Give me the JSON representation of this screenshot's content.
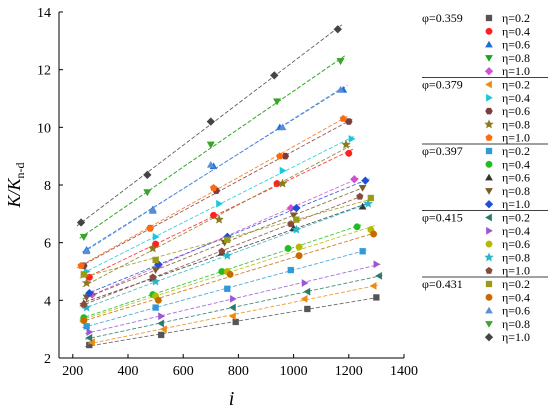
{
  "chart_data": {
    "type": "scatter",
    "xlabel": "i",
    "ylabel": "K/K",
    "ylabel_sub": "n-d",
    "xlim": [
      150,
      1400
    ],
    "ylim": [
      2,
      14
    ],
    "xticks": [
      200,
      400,
      600,
      800,
      1000,
      1200,
      1400
    ],
    "yticks": [
      2,
      4,
      6,
      8,
      10,
      12,
      14
    ],
    "grid": false,
    "legend_position": "right",
    "groups": [
      {
        "phi": "φ=0.359",
        "series": [
          {
            "name": "η=0.2",
            "marker": "square",
            "color": "#555555",
            "x": [
              260,
              520,
              790,
              1050,
              1300
            ],
            "y": [
              2.45,
              2.8,
              3.25,
              3.7,
              4.1
            ]
          },
          {
            "name": "η=0.4",
            "marker": "circle",
            "color": "#ff1f1f",
            "x": [
              260,
              500,
              710,
              940,
              1200
            ],
            "y": [
              4.8,
              5.95,
              6.95,
              8.05,
              9.1
            ]
          },
          {
            "name": "η=0.6",
            "marker": "triangle-up",
            "color": "#1e6fd6",
            "x": [
              250,
              490,
              710,
              950,
              1180
            ],
            "y": [
              5.75,
              7.15,
              8.65,
              10.0,
              11.3
            ]
          },
          {
            "name": "η=0.8",
            "marker": "triangle-down",
            "color": "#1aa31a",
            "x": [
              240,
              470,
              700,
              940,
              1170
            ],
            "y": [
              6.2,
              7.75,
              9.4,
              10.9,
              12.3
            ]
          },
          {
            "name": "η=1.0",
            "marker": "diamond",
            "color": "#d24fd2",
            "x": [
              270,
              510,
              760,
              990,
              1220
            ],
            "y": [
              4.2,
              5.2,
              6.2,
              7.2,
              8.2
            ]
          }
        ]
      },
      {
        "phi": "φ=0.379",
        "series": [
          {
            "name": "η=0.2",
            "marker": "triangle-left",
            "color": "#ee8a12",
            "x": [
              270,
              530,
              780,
              1040,
              1290
            ],
            "y": [
              2.55,
              3.0,
              3.45,
              4.05,
              4.5
            ]
          },
          {
            "name": "η=0.4",
            "marker": "triangle-right",
            "color": "#17c8d8",
            "x": [
              250,
              500,
              730,
              960,
              1210
            ],
            "y": [
              5.0,
              6.2,
              7.35,
              8.5,
              9.6
            ]
          },
          {
            "name": "η=0.6",
            "marker": "hexagon",
            "color": "#7a3c3c",
            "x": [
              240,
              480,
              720,
              970,
              1200
            ],
            "y": [
              5.2,
              6.5,
              7.8,
              9.0,
              10.2
            ]
          },
          {
            "name": "η=0.8",
            "marker": "star",
            "color": "#8a7a1e",
            "x": [
              250,
              490,
              730,
              960,
              1190
            ],
            "y": [
              4.6,
              5.8,
              6.8,
              8.05,
              9.4
            ]
          },
          {
            "name": "η=1.0",
            "marker": "pentagon",
            "color": "#ff6a0e",
            "x": [
              230,
              480,
              710,
              950,
              1180
            ],
            "y": [
              5.2,
              6.5,
              7.9,
              9.0,
              10.3
            ]
          }
        ]
      },
      {
        "phi": "φ=0.397",
        "series": [
          {
            "name": "η=0.2",
            "marker": "square",
            "color": "#2f9ad8",
            "x": [
              250,
              500,
              760,
              990,
              1250
            ],
            "y": [
              3.1,
              3.75,
              4.4,
              5.05,
              5.7
            ]
          },
          {
            "name": "η=0.4",
            "marker": "circle",
            "color": "#22bb22",
            "x": [
              240,
              490,
              740,
              980,
              1230
            ],
            "y": [
              3.4,
              4.2,
              5.0,
              5.8,
              6.55
            ]
          },
          {
            "name": "η=0.6",
            "marker": "triangle-up",
            "color": "#333333",
            "x": [
              240,
              490,
              740,
              1000,
              1250
            ],
            "y": [
              3.9,
              4.75,
              5.65,
              6.5,
              7.25
            ]
          },
          {
            "name": "η=0.8",
            "marker": "triangle-down",
            "color": "#7a5a2a",
            "x": [
              250,
              500,
              750,
              1000,
              1250
            ],
            "y": [
              4.1,
              5.05,
              6.0,
              6.95,
              7.9
            ]
          },
          {
            "name": "η=1.0",
            "marker": "diamond",
            "color": "#1d4fd6",
            "x": [
              260,
              510,
              760,
              1010,
              1260
            ],
            "y": [
              4.25,
              5.25,
              6.2,
              7.2,
              8.15
            ]
          }
        ]
      },
      {
        "phi": "φ=0.415",
        "series": [
          {
            "name": "η=0.2",
            "marker": "triangle-left",
            "color": "#2a7a6a",
            "x": [
              260,
              520,
              780,
              1050,
              1310
            ],
            "y": [
              2.7,
              3.2,
              3.75,
              4.3,
              4.85
            ]
          },
          {
            "name": "η=0.4",
            "marker": "triangle-right",
            "color": "#9a56d6",
            "x": [
              260,
              520,
              780,
              1040,
              1300
            ],
            "y": [
              2.9,
              3.45,
              4.05,
              4.6,
              5.25
            ]
          },
          {
            "name": "η=0.6",
            "marker": "circle",
            "color": "#b8b800",
            "x": [
              240,
              500,
              760,
              1020,
              1280
            ],
            "y": [
              3.3,
              4.15,
              5.0,
              5.85,
              6.45
            ]
          },
          {
            "name": "η=0.8",
            "marker": "star",
            "color": "#2bb5c8",
            "x": [
              250,
              500,
              760,
              1010,
              1270
            ],
            "y": [
              3.75,
              4.65,
              5.55,
              6.45,
              7.35
            ]
          },
          {
            "name": "η=1.0",
            "marker": "pentagon",
            "color": "#8a4a3a",
            "x": [
              240,
              490,
              740,
              990,
              1240
            ],
            "y": [
              3.85,
              4.8,
              5.7,
              6.65,
              7.6
            ]
          }
        ]
      },
      {
        "phi": "φ=0.431",
        "series": [
          {
            "name": "η=0.2",
            "marker": "square",
            "color": "#9a9a1a",
            "x": [
              240,
              500,
              760,
              1010,
              1280
            ],
            "y": [
              4.9,
              5.4,
              6.1,
              6.8,
              7.55
            ]
          },
          {
            "name": "η=0.4",
            "marker": "circle",
            "color": "#c86a00",
            "x": [
              240,
              510,
              770,
              1020,
              1290
            ],
            "y": [
              3.3,
              4.0,
              4.9,
              5.55,
              6.3
            ]
          },
          {
            "name": "η=0.6",
            "marker": "triangle-up",
            "color": "#5a8fd6",
            "x": [
              250,
              490,
              700,
              960,
              1170
            ],
            "y": [
              5.7,
              7.1,
              8.7,
              10.0,
              11.3
            ]
          },
          {
            "name": "η=0.8",
            "marker": "triangle-down",
            "color": "#3aa52a",
            "x": [
              240,
              470,
              700,
              940,
              1170
            ],
            "y": [
              6.2,
              7.75,
              9.4,
              10.9,
              12.3
            ]
          },
          {
            "name": "η=1.0",
            "marker": "diamond",
            "color": "#444444",
            "x": [
              230,
              470,
              700,
              930,
              1160
            ],
            "y": [
              6.7,
              8.35,
              10.2,
              11.8,
              13.4
            ]
          }
        ]
      }
    ]
  }
}
